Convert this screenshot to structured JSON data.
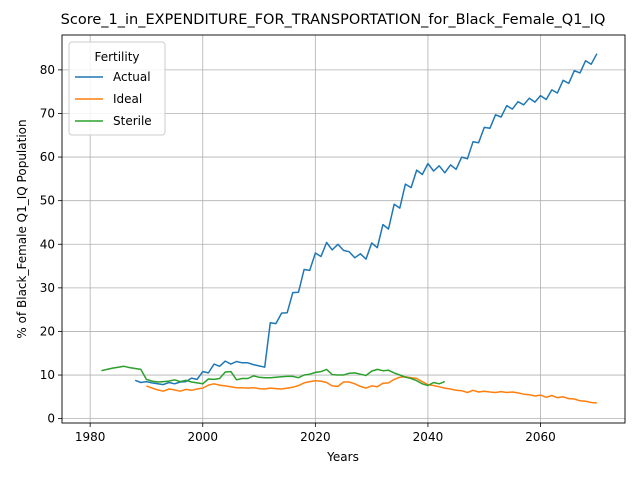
{
  "chart_data": {
    "type": "line",
    "title": "Score_1_in_EXPENDITURE_FOR_TRANSPORTATION_for_Black_Female_Q1_IQ",
    "xlabel": "Years",
    "ylabel": "% of Black_Female Q1_IQ Population",
    "xlim": [
      1975,
      2075
    ],
    "ylim": [
      -1,
      88
    ],
    "xticks": [
      1980,
      2000,
      2020,
      2040,
      2060
    ],
    "yticks": [
      0,
      10,
      20,
      30,
      40,
      50,
      60,
      70,
      80
    ],
    "grid": true,
    "legend": {
      "title": "Fertility",
      "placement": "top-left"
    },
    "series": [
      {
        "name": "Actual",
        "color": "#1f77b4",
        "x": [
          1988,
          1989,
          1990,
          1991,
          1992,
          1993,
          1994,
          1995,
          1996,
          1997,
          1998,
          1999,
          2000,
          2001,
          2002,
          2003,
          2004,
          2005,
          2006,
          2007,
          2008,
          2009,
          2010,
          2011,
          2012,
          2013,
          2014,
          2015,
          2016,
          2017,
          2018,
          2019,
          2020,
          2021,
          2022,
          2023,
          2024,
          2025,
          2026,
          2027,
          2028,
          2029,
          2030,
          2031,
          2032,
          2033,
          2034,
          2035,
          2036,
          2037,
          2038,
          2039,
          2040,
          2041,
          2042,
          2043,
          2044,
          2045,
          2046,
          2047,
          2048,
          2049,
          2050,
          2051,
          2052,
          2053,
          2054,
          2055,
          2056,
          2057,
          2058,
          2059,
          2060,
          2061,
          2062,
          2063,
          2064,
          2065,
          2066,
          2067,
          2068,
          2069,
          2070
        ],
        "values": [
          8.8,
          8.3,
          8.5,
          8.2,
          8.0,
          7.8,
          8.3,
          8.0,
          8.4,
          8.5,
          9.3,
          9.0,
          10.8,
          10.5,
          12.5,
          12.0,
          13.2,
          12.5,
          13.1,
          12.8,
          12.8,
          12.4,
          12.1,
          11.8,
          22.0,
          21.8,
          24.2,
          24.3,
          28.9,
          29.0,
          34.2,
          34.0,
          38.0,
          37.2,
          40.4,
          38.7,
          40.0,
          38.6,
          38.3,
          36.9,
          37.8,
          36.6,
          40.3,
          39.2,
          44.5,
          43.5,
          49.2,
          48.3,
          53.8,
          53.0,
          57.0,
          56.0,
          58.5,
          56.8,
          58.0,
          56.4,
          58.2,
          57.2,
          60.0,
          59.6,
          63.5,
          63.3,
          66.8,
          66.6,
          69.7,
          69.2,
          71.8,
          71.0,
          72.7,
          72.0,
          73.5,
          72.6,
          74.1,
          73.2,
          75.4,
          74.7,
          77.6,
          76.9,
          79.8,
          79.3,
          82.1,
          81.3,
          83.7
        ]
      },
      {
        "name": "Ideal",
        "color": "#ff7f0e",
        "x": [
          1990,
          1991,
          1992,
          1993,
          1994,
          1995,
          1996,
          1997,
          1998,
          1999,
          2000,
          2001,
          2002,
          2003,
          2004,
          2005,
          2006,
          2007,
          2008,
          2009,
          2010,
          2011,
          2012,
          2013,
          2014,
          2015,
          2016,
          2017,
          2018,
          2019,
          2020,
          2021,
          2022,
          2023,
          2024,
          2025,
          2026,
          2027,
          2028,
          2029,
          2030,
          2031,
          2032,
          2033,
          2034,
          2035,
          2036,
          2037,
          2038,
          2039,
          2040,
          2041,
          2042,
          2043,
          2044,
          2045,
          2046,
          2047,
          2048,
          2049,
          2050,
          2051,
          2052,
          2053,
          2054,
          2055,
          2056,
          2057,
          2058,
          2059,
          2060,
          2061,
          2062,
          2063,
          2064,
          2065,
          2066,
          2067,
          2068,
          2069,
          2070
        ],
        "values": [
          7.5,
          7.0,
          6.6,
          6.3,
          6.8,
          6.6,
          6.3,
          6.7,
          6.5,
          6.8,
          7.0,
          7.7,
          8.0,
          7.7,
          7.5,
          7.3,
          7.1,
          7.1,
          7.0,
          7.1,
          6.9,
          6.8,
          7.0,
          6.9,
          6.8,
          7.0,
          7.2,
          7.6,
          8.2,
          8.5,
          8.7,
          8.6,
          8.3,
          7.5,
          7.4,
          8.4,
          8.4,
          8.0,
          7.4,
          7.0,
          7.5,
          7.3,
          8.1,
          8.2,
          9.0,
          9.5,
          9.6,
          9.4,
          9.2,
          8.5,
          7.8,
          7.6,
          7.3,
          7.0,
          6.8,
          6.5,
          6.4,
          6.0,
          6.5,
          6.1,
          6.3,
          6.1,
          6.0,
          6.2,
          6.0,
          6.1,
          5.9,
          5.6,
          5.5,
          5.2,
          5.4,
          4.9,
          5.3,
          4.8,
          5.0,
          4.6,
          4.5,
          4.1,
          4.0,
          3.7,
          3.6
        ]
      },
      {
        "name": "Sterile",
        "color": "#2ca02c",
        "x": [
          1982,
          1983,
          1984,
          1985,
          1986,
          1987,
          1988,
          1989,
          1990,
          1991,
          1992,
          1993,
          1994,
          1995,
          1996,
          1997,
          1998,
          1999,
          2000,
          2001,
          2002,
          2003,
          2004,
          2005,
          2006,
          2007,
          2008,
          2009,
          2010,
          2011,
          2012,
          2013,
          2014,
          2015,
          2016,
          2017,
          2018,
          2019,
          2020,
          2021,
          2022,
          2023,
          2024,
          2025,
          2026,
          2027,
          2028,
          2029,
          2030,
          2031,
          2032,
          2033,
          2034,
          2035,
          2036,
          2037,
          2038,
          2039,
          2040,
          2041,
          2042,
          2043
        ],
        "values": [
          11.0,
          11.3,
          11.6,
          11.8,
          12.0,
          11.7,
          11.5,
          11.3,
          9.0,
          8.6,
          8.4,
          8.5,
          8.6,
          8.9,
          8.5,
          8.8,
          8.4,
          8.2,
          8.0,
          9.1,
          9.0,
          9.2,
          10.7,
          10.8,
          8.9,
          9.2,
          9.2,
          9.8,
          9.5,
          9.4,
          9.4,
          9.5,
          9.6,
          9.7,
          9.7,
          9.4,
          10.0,
          10.2,
          10.6,
          10.8,
          11.3,
          10.1,
          10.0,
          10.0,
          10.4,
          10.5,
          10.2,
          9.9,
          10.9,
          11.3,
          11.0,
          11.1,
          10.5,
          10.0,
          9.5,
          9.2,
          8.7,
          8.0,
          7.6,
          8.3,
          8.0,
          8.5
        ]
      }
    ]
  }
}
